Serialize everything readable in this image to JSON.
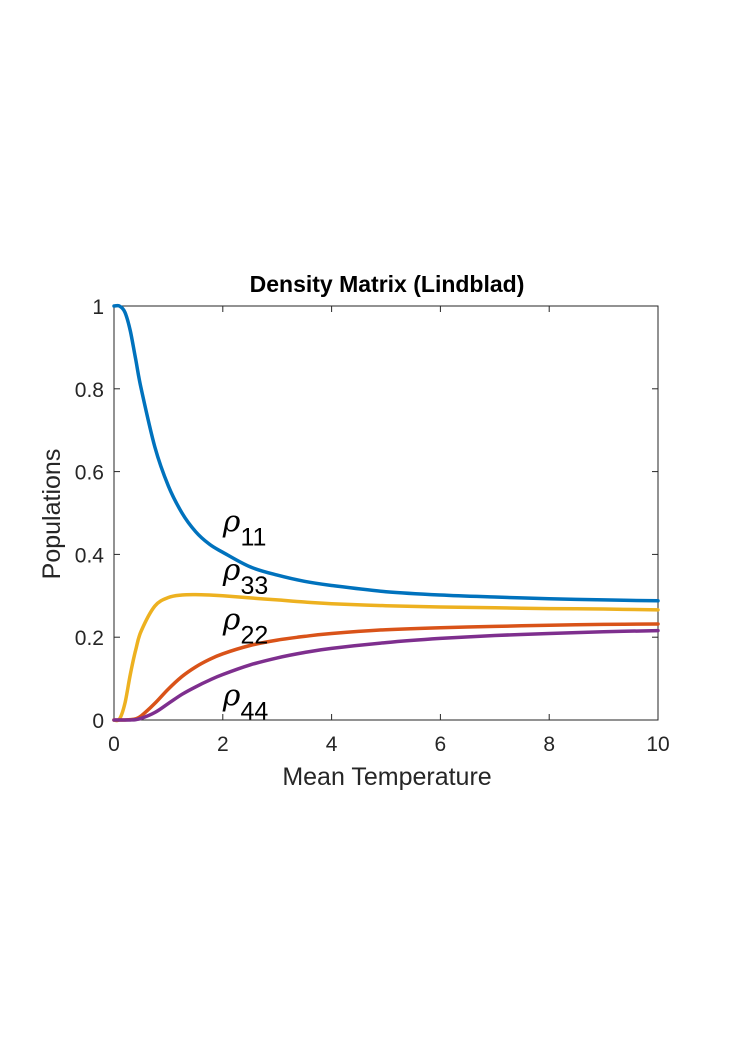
{
  "chart_data": {
    "type": "line",
    "title": "Density Matrix (Lindblad)",
    "xlabel": "Mean Temperature",
    "ylabel": "Populations",
    "xlim": [
      0,
      10
    ],
    "ylim": [
      0,
      1
    ],
    "xticks": [
      0,
      2,
      4,
      6,
      8,
      10
    ],
    "yticks": [
      0,
      0.2,
      0.4,
      0.6,
      0.8,
      1
    ],
    "x": [
      0,
      0.1,
      0.2,
      0.3,
      0.4,
      0.5,
      0.75,
      1,
      1.25,
      1.5,
      1.75,
      2,
      2.5,
      3,
      3.5,
      4,
      5,
      6,
      7,
      8,
      9,
      10
    ],
    "series": [
      {
        "name": "ρ11",
        "color": "#0072BD",
        "values": [
          1.0,
          1.0,
          0.985,
          0.94,
          0.87,
          0.8,
          0.66,
          0.565,
          0.5,
          0.455,
          0.425,
          0.405,
          0.37,
          0.35,
          0.335,
          0.325,
          0.31,
          0.302,
          0.297,
          0.293,
          0.29,
          0.288
        ]
      },
      {
        "name": "ρ33",
        "color": "#EDB120",
        "values": [
          0.0,
          0.002,
          0.04,
          0.11,
          0.17,
          0.215,
          0.275,
          0.296,
          0.302,
          0.303,
          0.302,
          0.3,
          0.295,
          0.29,
          0.285,
          0.281,
          0.276,
          0.273,
          0.271,
          0.269,
          0.268,
          0.266
        ]
      },
      {
        "name": "ρ22",
        "color": "#D95319",
        "values": [
          0.0,
          0.0,
          0.0,
          0.001,
          0.003,
          0.01,
          0.04,
          0.075,
          0.105,
          0.128,
          0.146,
          0.16,
          0.18,
          0.193,
          0.202,
          0.209,
          0.218,
          0.223,
          0.226,
          0.229,
          0.231,
          0.232
        ]
      },
      {
        "name": "ρ44",
        "color": "#7E2F8E",
        "values": [
          0.0,
          0.0,
          0.0,
          0.0,
          0.001,
          0.004,
          0.018,
          0.04,
          0.062,
          0.08,
          0.096,
          0.11,
          0.133,
          0.15,
          0.163,
          0.173,
          0.187,
          0.197,
          0.204,
          0.209,
          0.213,
          0.216
        ]
      }
    ],
    "annotations": [
      {
        "main": "ρ",
        "sub": "11",
        "x": 2.0,
        "y": 0.455
      },
      {
        "main": "ρ",
        "sub": "33",
        "x": 2.0,
        "y": 0.338
      },
      {
        "main": "ρ",
        "sub": "22",
        "x": 2.0,
        "y": 0.218
      },
      {
        "main": "ρ",
        "sub": "44",
        "x": 2.0,
        "y": 0.035
      }
    ]
  }
}
